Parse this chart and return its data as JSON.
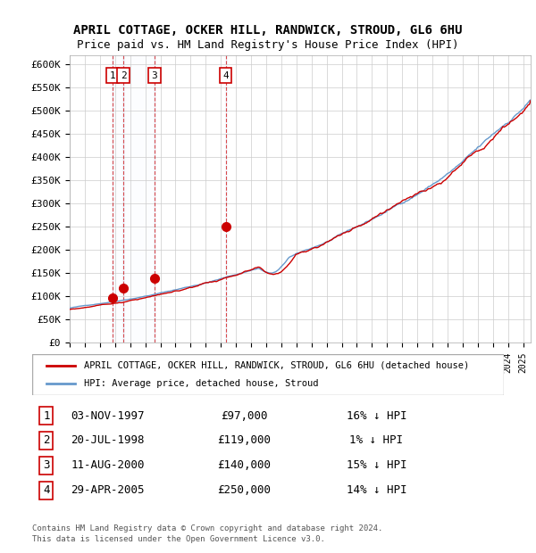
{
  "title1": "APRIL COTTAGE, OCKER HILL, RANDWICK, STROUD, GL6 6HU",
  "title2": "Price paid vs. HM Land Registry's House Price Index (HPI)",
  "ylabel_ticks": [
    "£0",
    "£50K",
    "£100K",
    "£150K",
    "£200K",
    "£250K",
    "£300K",
    "£350K",
    "£400K",
    "£450K",
    "£500K",
    "£550K",
    "£600K"
  ],
  "ytick_values": [
    0,
    50000,
    100000,
    150000,
    200000,
    250000,
    300000,
    350000,
    400000,
    450000,
    500000,
    550000,
    600000
  ],
  "xlim_start": 1995.0,
  "xlim_end": 2025.5,
  "ylim_min": 0,
  "ylim_max": 620000,
  "sale_points": [
    {
      "label": "1",
      "year": 1997.84,
      "price": 97000,
      "date": "03-NOV-1997",
      "pct": "16%",
      "dir": "↓"
    },
    {
      "label": "2",
      "year": 1998.55,
      "price": 119000,
      "date": "20-JUL-1998",
      "pct": "1%",
      "dir": "↓"
    },
    {
      "label": "3",
      "year": 2000.61,
      "price": 140000,
      "date": "11-AUG-2000",
      "pct": "15%",
      "dir": "↓"
    },
    {
      "label": "4",
      "year": 2005.33,
      "price": 250000,
      "date": "29-APR-2005",
      "pct": "14%",
      "dir": "↓"
    }
  ],
  "legend_label_red": "APRIL COTTAGE, OCKER HILL, RANDWICK, STROUD, GL6 6HU (detached house)",
  "legend_label_blue": "HPI: Average price, detached house, Stroud",
  "footer1": "Contains HM Land Registry data © Crown copyright and database right 2024.",
  "footer2": "This data is licensed under the Open Government Licence v3.0.",
  "table_rows": [
    [
      "1",
      "03-NOV-1997",
      "£97,000",
      "16% ↓ HPI"
    ],
    [
      "2",
      "20-JUL-1998",
      "£119,000",
      "1% ↓ HPI"
    ],
    [
      "3",
      "11-AUG-2000",
      "£140,000",
      "15% ↓ HPI"
    ],
    [
      "4",
      "29-APR-2005",
      "£250,000",
      "14% ↓ HPI"
    ]
  ],
  "bg_color": "#ffffff",
  "grid_color": "#cccccc",
  "red_color": "#cc0000",
  "blue_color": "#6699cc",
  "vline_color": "#cc0000",
  "shade_color": "#ddeeff"
}
